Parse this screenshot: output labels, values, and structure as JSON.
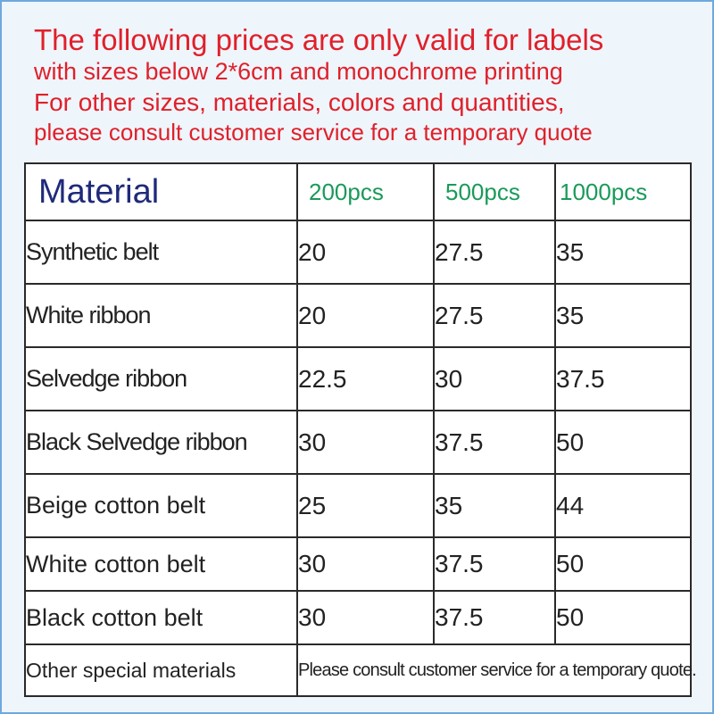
{
  "notice": {
    "line1": "The following prices are only valid for labels",
    "line2": "with sizes below 2*6cm and monochrome printing",
    "line3": "For other sizes, materials, colors and quantities,",
    "line4": "please consult customer service for a temporary quote"
  },
  "table": {
    "header": {
      "material": "Material",
      "qty1": "200pcs",
      "qty2": "500pcs",
      "qty3": "1000pcs"
    },
    "rows": [
      {
        "name": "Synthetic belt",
        "p200": "20",
        "p500": "27.5",
        "p1000": "35"
      },
      {
        "name": "White ribbon",
        "p200": "20",
        "p500": "27.5",
        "p1000": "35"
      },
      {
        "name": "Selvedge ribbon",
        "p200": "22.5",
        "p500": "30",
        "p1000": "37.5"
      },
      {
        "name": "Black Selvedge ribbon",
        "p200": "30",
        "p500": "37.5",
        "p1000": "50"
      },
      {
        "name": "Beige cotton belt",
        "p200": "25",
        "p500": "35",
        "p1000": "44"
      },
      {
        "name": "White cotton belt",
        "p200": "30",
        "p500": "37.5",
        "p1000": "50"
      },
      {
        "name": "Black cotton belt",
        "p200": "30",
        "p500": "37.5",
        "p1000": "50"
      }
    ],
    "other": {
      "name": "Other special materials",
      "note": "Please consult customer service for a temporary quote."
    }
  },
  "colors": {
    "notice_text": "#e0202a",
    "material_header": "#1f2a7a",
    "quantity_header": "#1a9a5a",
    "frame_border": "#6fa8dc"
  }
}
